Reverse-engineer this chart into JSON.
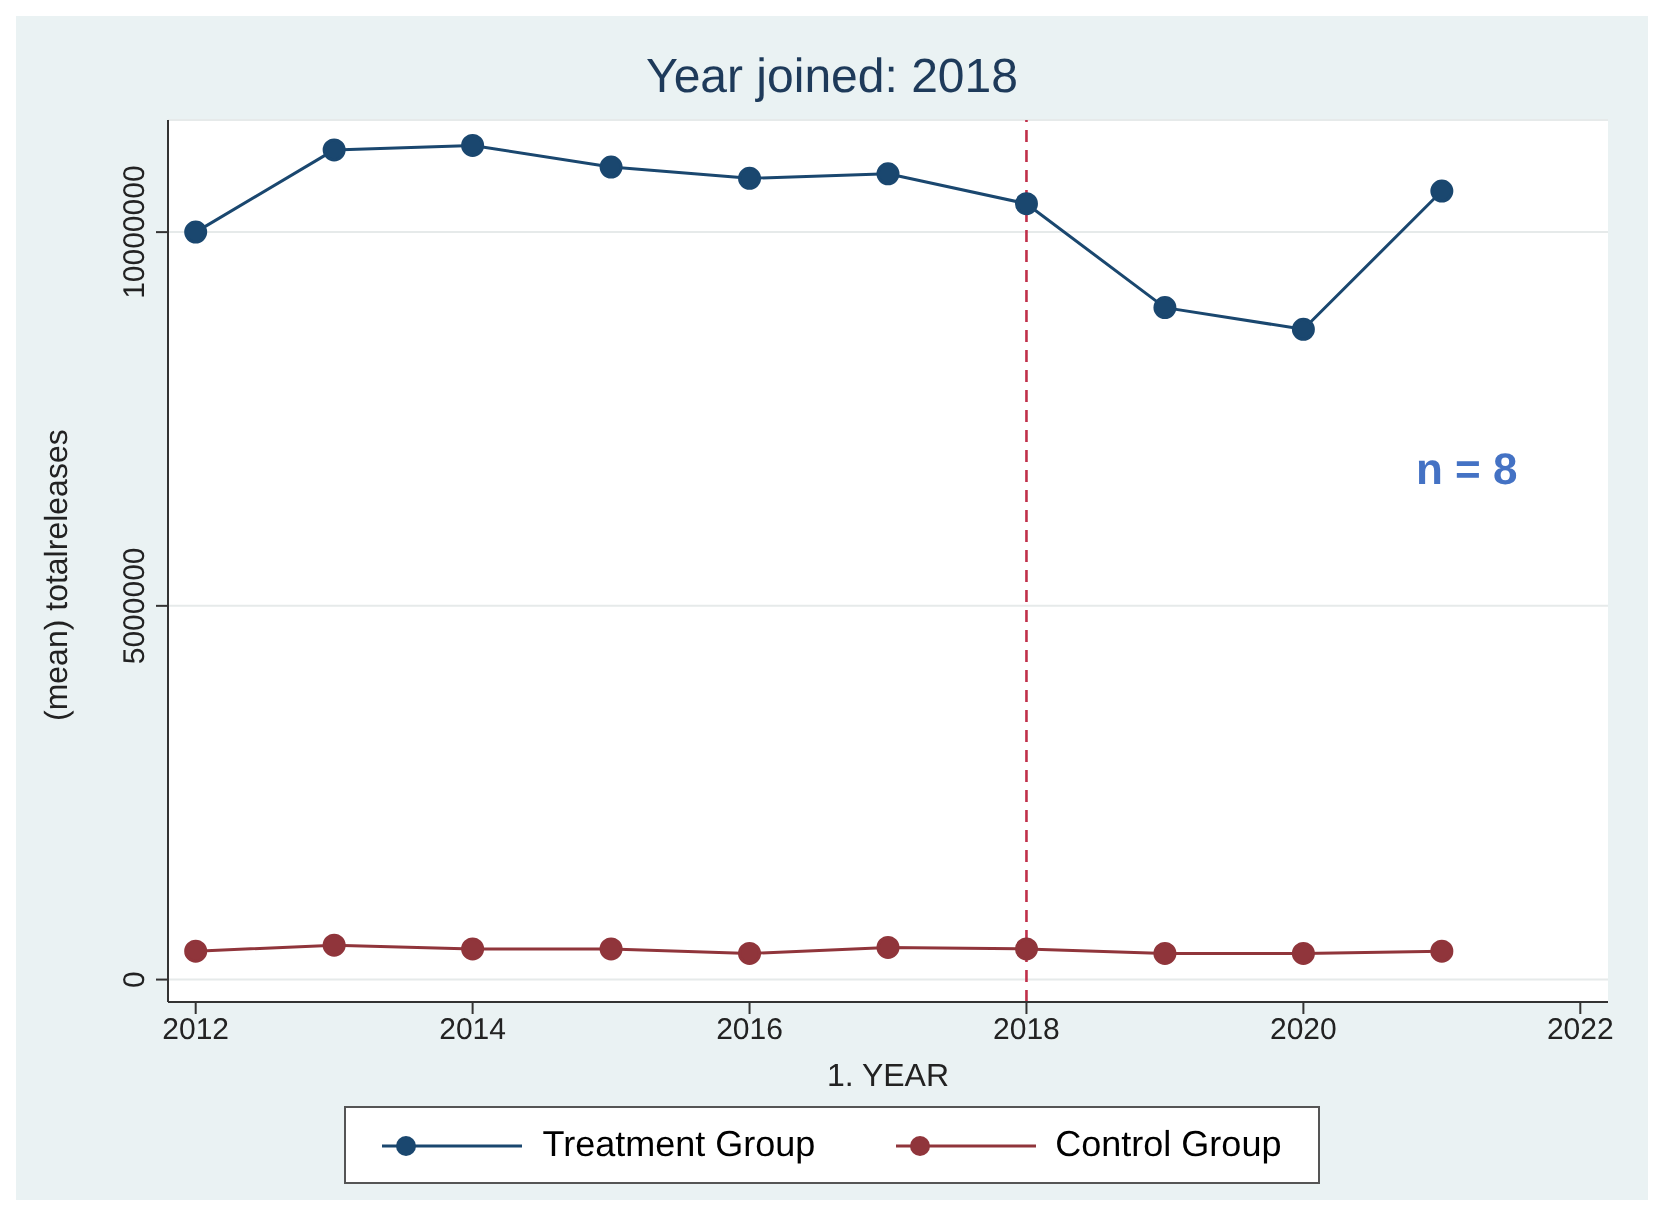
{
  "chart_data": {
    "type": "line",
    "title": "Year joined: 2018",
    "xlabel": "1. YEAR",
    "ylabel": "(mean) totalreleases",
    "x": [
      2012,
      2013,
      2014,
      2015,
      2016,
      2017,
      2018,
      2019,
      2020,
      2021
    ],
    "series": [
      {
        "name": "Treatment Group",
        "color": "#1a476f",
        "values": [
          10000000,
          11100000,
          11160000,
          10870000,
          10720000,
          10780000,
          10380000,
          8990000,
          8700000,
          10550000
        ]
      },
      {
        "name": "Control Group",
        "color": "#90353b",
        "values": [
          380000,
          460000,
          410000,
          410000,
          350000,
          430000,
          410000,
          350000,
          350000,
          380000
        ]
      }
    ],
    "xlim": [
      2011.8,
      2022.2
    ],
    "xticks": [
      2012,
      2014,
      2016,
      2018,
      2020,
      2022
    ],
    "ylim": [
      -300000,
      11500000
    ],
    "yticks": [
      0,
      5000000,
      10000000
    ],
    "grid": "y",
    "legend": "bottom",
    "marker": "circle",
    "line_style": "solid",
    "ref_lines": [
      {
        "axis": "x",
        "value": 2018,
        "color": "#c0304a",
        "line_style": "dashed"
      }
    ],
    "annotations": [
      "n = 8"
    ]
  }
}
